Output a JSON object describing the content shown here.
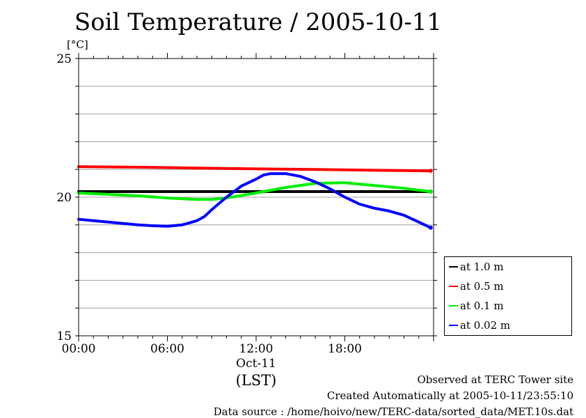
{
  "title": "Soil Temperature / 2005-10-11",
  "unit": "[°C]",
  "footer": {
    "line1": "Observed at TERC Tower site",
    "line2": "Created Automatically at 2005-10-11/23:55:10",
    "line3": "Data source : /home/hoivo/new/TERC-data/sorted_data/MET.10s.dat"
  },
  "chart_data": {
    "type": "line",
    "title": "Soil Temperature / 2005-10-11",
    "xlabel": "(LST)",
    "ylabel": "[°C]",
    "xlim": [
      0,
      24
    ],
    "ylim": [
      15,
      25
    ],
    "y_ticks": [
      15,
      20,
      25
    ],
    "y_minor_gridlines": [
      16,
      17,
      18,
      19,
      21,
      22,
      23,
      24
    ],
    "x_ticks": [
      {
        "x": 0,
        "label": "00:00"
      },
      {
        "x": 6,
        "label": "06:00"
      },
      {
        "x": 12,
        "label": "12:00"
      },
      {
        "x": 18,
        "label": "18:00"
      }
    ],
    "x_sublabel": "Oct-11",
    "grid": true,
    "legend_position": "right",
    "series": [
      {
        "name": "at 1.0 m",
        "color": "#000000",
        "x": [
          0,
          4,
          8,
          12,
          16,
          20,
          23.8
        ],
        "y": [
          20.2,
          20.2,
          20.2,
          20.2,
          20.2,
          20.2,
          20.2
        ]
      },
      {
        "name": "at 0.5 m",
        "color": "#ff0000",
        "x": [
          0,
          4,
          8,
          12,
          16,
          20,
          23.8
        ],
        "y": [
          21.1,
          21.08,
          21.05,
          21.02,
          21.0,
          20.97,
          20.95
        ]
      },
      {
        "name": "at 0.1 m",
        "color": "#00ee00",
        "x": [
          0,
          2,
          4,
          6,
          8,
          9,
          10,
          12,
          14,
          16,
          18,
          20,
          22,
          23.8
        ],
        "y": [
          20.15,
          20.1,
          20.05,
          19.97,
          19.92,
          19.92,
          19.97,
          20.15,
          20.35,
          20.5,
          20.52,
          20.42,
          20.32,
          20.2
        ]
      },
      {
        "name": "at 0.02 m",
        "color": "#0000ff",
        "x": [
          0,
          1,
          2,
          3,
          4,
          5,
          6,
          7,
          8,
          8.5,
          9,
          10,
          11,
          12,
          12.5,
          13,
          14,
          15,
          16,
          17,
          18,
          19,
          20,
          21,
          22,
          23,
          23.8
        ],
        "y": [
          19.2,
          19.15,
          19.1,
          19.05,
          19.0,
          18.97,
          18.95,
          19.0,
          19.15,
          19.3,
          19.55,
          20.0,
          20.4,
          20.65,
          20.8,
          20.85,
          20.85,
          20.75,
          20.55,
          20.3,
          20.0,
          19.75,
          19.6,
          19.5,
          19.35,
          19.1,
          18.9
        ]
      }
    ]
  }
}
